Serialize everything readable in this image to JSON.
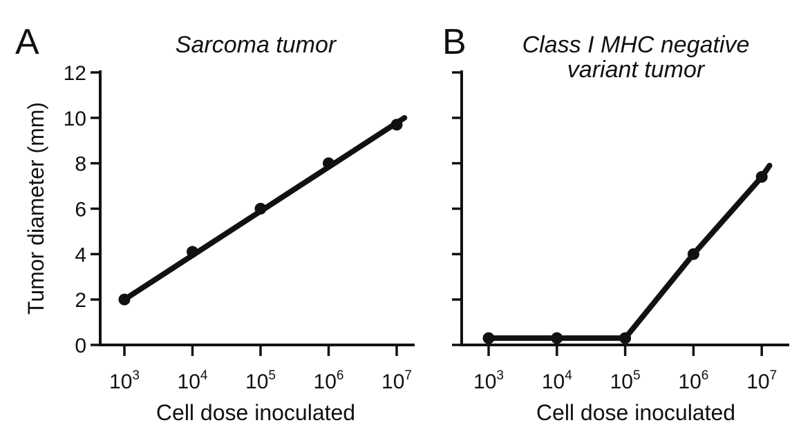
{
  "chart_data": [
    {
      "type": "line",
      "panel_label": "A",
      "title": "Sarcoma tumor",
      "xlabel": "Cell dose inoculated",
      "ylabel": "Tumor diameter (mm)",
      "x": [
        1000,
        10000,
        100000,
        1000000,
        10000000
      ],
      "x_tick_labels": [
        {
          "base": "10",
          "exp": "3"
        },
        {
          "base": "10",
          "exp": "4"
        },
        {
          "base": "10",
          "exp": "5"
        },
        {
          "base": "10",
          "exp": "6"
        },
        {
          "base": "10",
          "exp": "7"
        }
      ],
      "x_scale": "log",
      "y_ticks": [
        "0",
        "2",
        "4",
        "6",
        "8",
        "10",
        "12"
      ],
      "ylim": [
        0,
        12
      ],
      "series": [
        {
          "values": [
            2.0,
            4.1,
            6.0,
            8.0,
            9.7
          ]
        }
      ],
      "fit_line": {
        "x_start": 1000,
        "y_start": 2.0,
        "x_end": 13000000,
        "y_end": 10.0
      },
      "grid": false,
      "color": "#111111"
    },
    {
      "type": "line",
      "panel_label": "B",
      "title": "Class I MHC negative variant tumor",
      "title_lines": [
        "Class I MHC negative",
        "variant tumor"
      ],
      "xlabel": "Cell dose inoculated",
      "ylabel": "",
      "x": [
        1000,
        10000,
        100000,
        1000000,
        10000000
      ],
      "x_tick_labels": [
        {
          "base": "10",
          "exp": "3"
        },
        {
          "base": "10",
          "exp": "4"
        },
        {
          "base": "10",
          "exp": "5"
        },
        {
          "base": "10",
          "exp": "6"
        },
        {
          "base": "10",
          "exp": "7"
        }
      ],
      "x_scale": "log",
      "y_ticks": [
        "",
        "",
        "",
        "",
        "",
        "",
        ""
      ],
      "ylim": [
        0,
        12
      ],
      "series": [
        {
          "values": [
            0.3,
            0.3,
            0.3,
            4.0,
            7.4
          ]
        }
      ],
      "fit_line_end": {
        "x": 13000000,
        "y": 7.9
      },
      "grid": false,
      "color": "#111111"
    }
  ]
}
